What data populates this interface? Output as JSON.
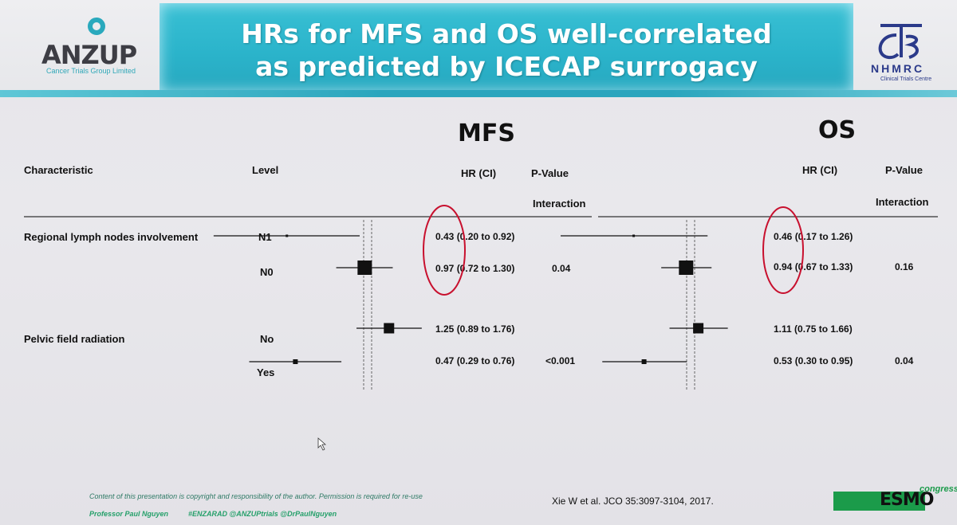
{
  "header": {
    "title_line1": "HRs for MFS and OS well-correlated",
    "title_line2": "as predicted by ICECAP surrogacy",
    "left_logo": {
      "name": "ANZUP",
      "tagline": "Cancer Trials Group Limited"
    },
    "right_logo": {
      "name": "NHMRC",
      "tagline": "Clinical Trials Centre"
    }
  },
  "columns": {
    "characteristic": "Characteristic",
    "level": "Level",
    "mfs": "MFS",
    "os": "OS",
    "hr_ci": "HR (CI)",
    "p_value": "P-Value",
    "interaction": "Interaction"
  },
  "chart_data": [
    {
      "type": "forest",
      "title": "MFS",
      "reference_line": 1,
      "rows": [
        {
          "characteristic": "Regional lymph nodes involvement",
          "level": "N1",
          "hr": 0.43,
          "lo": 0.2,
          "hi": 0.92,
          "label": "0.43 (0.20 to 0.92)",
          "p": ""
        },
        {
          "characteristic": "",
          "level": "N0",
          "hr": 0.97,
          "lo": 0.72,
          "hi": 1.3,
          "label": "0.97 (0.72 to 1.30)",
          "p": "0.04"
        },
        {
          "characteristic": "Pelvic field radiation",
          "level": "No",
          "hr": 1.25,
          "lo": 0.89,
          "hi": 1.76,
          "label": "1.25 (0.89 to 1.76)",
          "p": ""
        },
        {
          "characteristic": "",
          "level": "Yes",
          "hr": 0.47,
          "lo": 0.29,
          "hi": 0.76,
          "label": "0.47 (0.29 to 0.76)",
          "p": "<0.001"
        }
      ]
    },
    {
      "type": "forest",
      "title": "OS",
      "reference_line": 1,
      "rows": [
        {
          "level": "N1",
          "hr": 0.46,
          "lo": 0.17,
          "hi": 1.26,
          "label": "0.46 (0.17 to 1.26)",
          "p": ""
        },
        {
          "level": "N0",
          "hr": 0.94,
          "lo": 0.67,
          "hi": 1.33,
          "label": "0.94 (0.67 to 1.33)",
          "p": "0.16"
        },
        {
          "level": "No",
          "hr": 1.11,
          "lo": 0.75,
          "hi": 1.66,
          "label": "1.11 (0.75 to 1.66)",
          "p": ""
        },
        {
          "level": "Yes",
          "hr": 0.53,
          "lo": 0.3,
          "hi": 0.95,
          "label": "0.53 (0.30 to 0.95)",
          "p": "0.04"
        }
      ]
    }
  ],
  "footer": {
    "copyright": "Content of this presentation is copyright and responsibility of the author. Permission is required for re-use",
    "presenter": "Professor Paul Nguyen",
    "tags": "#ENZARAD  @ANZUPtrials  @DrPaulNguyen",
    "citation": "Xie W et al. JCO 35:3097-3104, 2017.",
    "congress_logo": "ESMO",
    "congress_word": "congress"
  },
  "colors": {
    "title_band": "#2bb4cb",
    "annotation_circle": "#c8102e",
    "marker": "#111111",
    "esmo_green": "#1b9b4a"
  }
}
